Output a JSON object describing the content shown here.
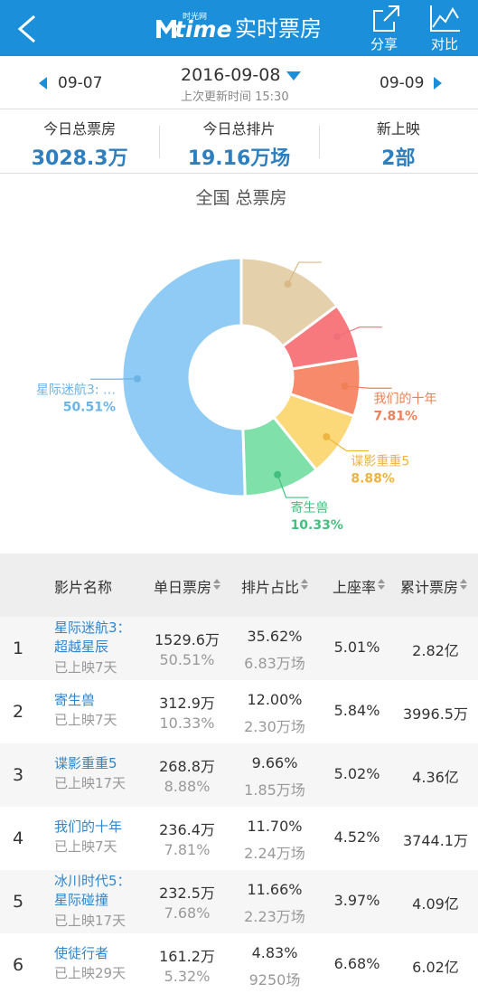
{
  "header": {
    "logo": "time",
    "logo_sub": "时光网",
    "title": "实时票房",
    "share": "分享",
    "compare": "对比"
  },
  "date_nav": {
    "prev": "09-07",
    "date": "2016-09-08",
    "updated": "上次更新时间 15:30",
    "next": "09-09"
  },
  "stats": [
    {
      "label": "今日总票房",
      "value": "3028.3万"
    },
    {
      "label": "今日总排片",
      "value": "19.16万场"
    },
    {
      "label": "新上映",
      "value": "2部"
    }
  ],
  "chart_data": {
    "type": "pie",
    "title": "全国 总票房",
    "categories": [
      null,
      null,
      "我们的十年",
      "谍影重重5",
      "寄生兽",
      "星际迷航3: …"
    ],
    "values": [
      14.79,
      7.68,
      7.81,
      8.88,
      10.33,
      50.51
    ],
    "value_labels": [
      null,
      null,
      "7.81%",
      "8.88%",
      "10.33%",
      "50.51%"
    ],
    "colors": [
      "#e4d0ab",
      "#f7787d",
      "#f68a6b",
      "#fbd878",
      "#80e0a9",
      "#8fcbf5"
    ],
    "label_colors": [
      "#d8b98a",
      "#f0707a",
      "#ef7f55",
      "#edb43f",
      "#43bf7f",
      "#6cb4e4"
    ]
  },
  "table": {
    "columns": [
      "影片名称",
      "单日票房",
      "排片占比",
      "上座率",
      "累计票房"
    ],
    "rows": [
      [
        "1",
        "星际迷航3：超越星辰",
        "已上映7天",
        "1529.6万",
        "50.51%",
        "35.62%",
        "6.83万场",
        "5.01%",
        "2.82亿"
      ],
      [
        "2",
        "寄生兽",
        "已上映7天",
        "312.9万",
        "10.33%",
        "12.00%",
        "2.30万场",
        "5.84%",
        "3996.5万"
      ],
      [
        "3",
        "谍影重重5",
        "已上映17天",
        "268.8万",
        "8.88%",
        "9.66%",
        "1.85万场",
        "5.02%",
        "4.36亿"
      ],
      [
        "4",
        "我们的十年",
        "已上映7天",
        "236.4万",
        "7.81%",
        "11.70%",
        "2.24万场",
        "4.52%",
        "3744.1万"
      ],
      [
        "5",
        "冰川时代5：星际碰撞",
        "已上映17天",
        "232.5万",
        "7.68%",
        "11.66%",
        "2.23万场",
        "3.97%",
        "4.09亿"
      ],
      [
        "6",
        "使徒行者",
        "已上映29天",
        "161.2万",
        "5.32%",
        "4.83%",
        "9250场",
        "6.68%",
        "6.02亿"
      ]
    ]
  }
}
